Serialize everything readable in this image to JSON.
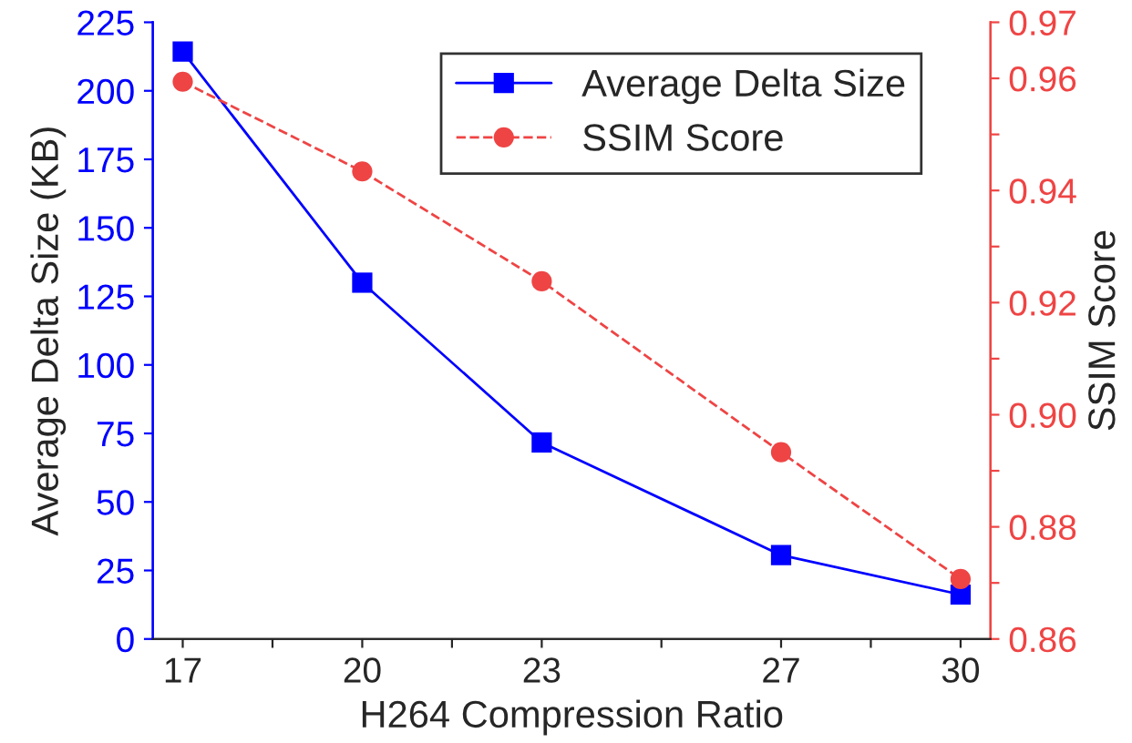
{
  "chart_data": {
    "type": "line",
    "xlabel": "H264 Compression Ratio",
    "ylabel": "Average Delta Size (KB)",
    "y2label": "SSIM Score",
    "x": [
      17,
      20,
      23,
      27,
      30
    ],
    "xlim": [
      16.5,
      30.5
    ],
    "xticks": [
      17,
      {
        "value": 18.5,
        "label": null
      },
      20,
      {
        "value": 21.5,
        "label": null
      },
      23,
      {
        "value": 25,
        "label": null
      },
      27,
      {
        "value": 28.5,
        "label": null
      },
      30
    ],
    "ylim": [
      0,
      225
    ],
    "yticks": [
      0,
      25,
      50,
      75,
      100,
      125,
      150,
      175,
      200,
      225
    ],
    "y2lim": [
      0.86,
      0.97
    ],
    "y2ticks": [
      {
        "value": 0.86,
        "label": "0.86"
      },
      {
        "value": 0.87,
        "label": null
      },
      {
        "value": 0.88,
        "label": "0.88"
      },
      {
        "value": 0.89,
        "label": null
      },
      {
        "value": 0.9,
        "label": "0.90"
      },
      {
        "value": 0.91,
        "label": null
      },
      {
        "value": 0.92,
        "label": "0.92"
      },
      {
        "value": 0.93,
        "label": null
      },
      {
        "value": 0.94,
        "label": "0.94"
      },
      {
        "value": 0.95,
        "label": null
      },
      {
        "value": 0.96,
        "label": "0.96"
      },
      {
        "value": 0.97,
        "label": "0.97"
      }
    ],
    "legend": "top right",
    "grid": false,
    "series": [
      {
        "name": "Average Delta Size",
        "color": "#0000ff",
        "marker": "square",
        "line_style": "solid",
        "values": [
          214.3,
          130,
          71.7,
          30.6,
          16.2
        ]
      },
      {
        "name": "SSIM Score",
        "color": "#ef4444",
        "marker": "circle",
        "line_style": "dashed",
        "axis": "y2",
        "values": [
          0.9594,
          0.9434,
          0.9238,
          0.8933,
          0.8707
        ]
      }
    ]
  }
}
